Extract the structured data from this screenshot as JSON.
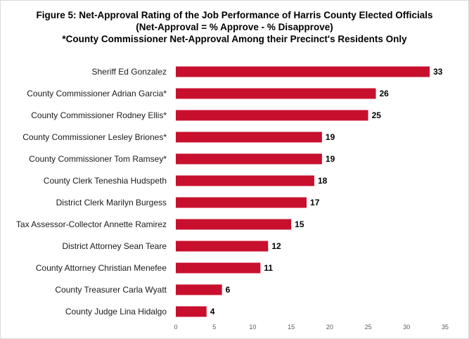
{
  "chart_data": {
    "type": "bar",
    "orientation": "horizontal",
    "title_lines": [
      "Figure 5: Net-Approval Rating of the Job Performance of Harris County Elected Officials",
      "(Net-Approval = % Approve - % Disapprove)",
      "*County Commissioner Net-Approval Among their Precinct's Residents Only"
    ],
    "categories": [
      "Sheriff Ed Gonzalez",
      "County Commissioner Adrian Garcia*",
      "County Commissioner Rodney Ellis*",
      "County Commissioner Lesley Briones*",
      "County Commissioner Tom Ramsey*",
      "County Clerk Teneshia Hudspeth",
      "District Clerk Marilyn Burgess",
      "Tax Assessor-Collector Annette Ramirez",
      "District Attorney Sean Teare",
      "County Attorney Christian Menefee",
      "County Treasurer Carla Wyatt",
      "County Judge Lina Hidalgo"
    ],
    "values": [
      33,
      26,
      25,
      19,
      19,
      18,
      17,
      15,
      12,
      11,
      6,
      4
    ],
    "xlim": [
      0,
      35
    ],
    "xticks": [
      0,
      5,
      10,
      15,
      20,
      25,
      30,
      35
    ],
    "bar_color": "#c8102e",
    "grid": false,
    "legend": "none"
  }
}
